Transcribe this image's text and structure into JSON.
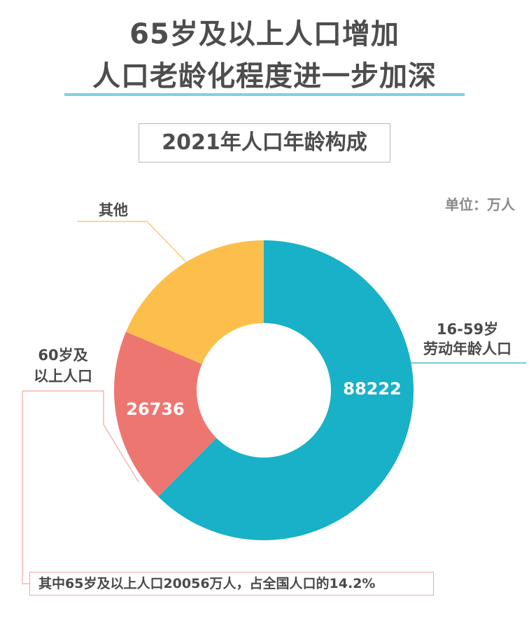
{
  "header": {
    "title_line1": "65岁及以上人口增加",
    "title_line2": "人口老龄化程度进一步加深"
  },
  "subtitle": "2021年人口年龄构成",
  "unit_label": "单位：万人",
  "note": "其中65岁及以上人口20056万人，占全国人口的14.2%",
  "chart_data": {
    "type": "pie",
    "title": "2021年人口年龄构成",
    "unit": "万人",
    "donut": true,
    "series": [
      {
        "name": "16-59岁劳动年龄人口",
        "value": 88222,
        "color": "#18b1c7",
        "label_lines": [
          "16-59岁",
          "劳动年龄人口"
        ],
        "value_label": "88222"
      },
      {
        "name": "60岁及以上人口",
        "value": 26736,
        "color": "#ee7670",
        "label_lines": [
          "60岁及",
          "以上人口"
        ],
        "value_label": "26736"
      },
      {
        "name": "其他",
        "value": 26302,
        "color": "#fcbf4b",
        "label_lines": [
          "其他"
        ],
        "value_label": ""
      }
    ]
  }
}
